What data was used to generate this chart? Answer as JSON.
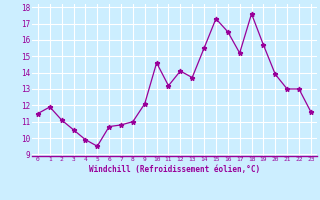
{
  "x": [
    0,
    1,
    2,
    3,
    4,
    5,
    6,
    7,
    8,
    9,
    10,
    11,
    12,
    13,
    14,
    15,
    16,
    17,
    18,
    19,
    20,
    21,
    22,
    23
  ],
  "y": [
    11.5,
    11.9,
    11.1,
    10.5,
    9.9,
    9.5,
    10.7,
    10.8,
    11.0,
    12.1,
    14.6,
    13.2,
    14.1,
    13.7,
    15.5,
    17.3,
    16.5,
    15.2,
    17.6,
    15.7,
    13.9,
    13.0,
    13.0,
    11.6
  ],
  "line_color": "#990099",
  "marker": "*",
  "bg_color": "#cceeff",
  "grid_color": "#ffffff",
  "xlabel": "Windchill (Refroidissement éolien,°C)",
  "xlabel_color": "#990099",
  "tick_color": "#990099",
  "border_color": "#990099",
  "ylim": [
    9,
    18
  ],
  "xlim": [
    -0.5,
    23.5
  ],
  "yticks": [
    9,
    10,
    11,
    12,
    13,
    14,
    15,
    16,
    17,
    18
  ],
  "xticks": [
    0,
    1,
    2,
    3,
    4,
    5,
    6,
    7,
    8,
    9,
    10,
    11,
    12,
    13,
    14,
    15,
    16,
    17,
    18,
    19,
    20,
    21,
    22,
    23
  ]
}
